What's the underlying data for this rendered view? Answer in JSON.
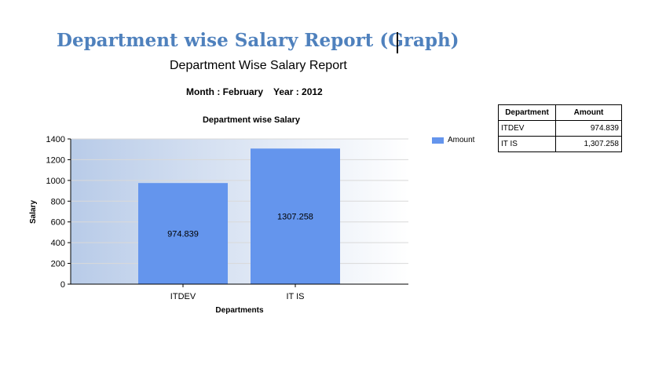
{
  "header": {
    "heading": "Department wise Salary Report (Graph)",
    "report_title": "Department Wise Salary Report",
    "month": "Month : February",
    "year": "Year : 2012"
  },
  "colors": {
    "heading": "#4f81bd",
    "bar": "#6495ed",
    "plot_gradient_start": "#b8cbe8",
    "plot_gradient_end": "#ffffff"
  },
  "chart_data": {
    "type": "bar",
    "title": "Department wise Salary",
    "xlabel": "Departments",
    "ylabel": "Salary",
    "categories": [
      "ITDEV",
      "IT IS"
    ],
    "series": [
      {
        "name": "Amount",
        "values": [
          974.839,
          1307.258
        ]
      }
    ],
    "data_labels": [
      "974.839",
      "1307.258"
    ],
    "ylim": [
      0,
      1400
    ],
    "yticks": [
      0,
      200,
      400,
      600,
      800,
      1000,
      1200,
      1400
    ],
    "grid": true,
    "legend": "right"
  },
  "table": {
    "headers": [
      "Department",
      "Amount"
    ],
    "rows": [
      {
        "department": "ITDEV",
        "amount": "974.839"
      },
      {
        "department": "IT IS",
        "amount": "1,307.258"
      }
    ]
  }
}
